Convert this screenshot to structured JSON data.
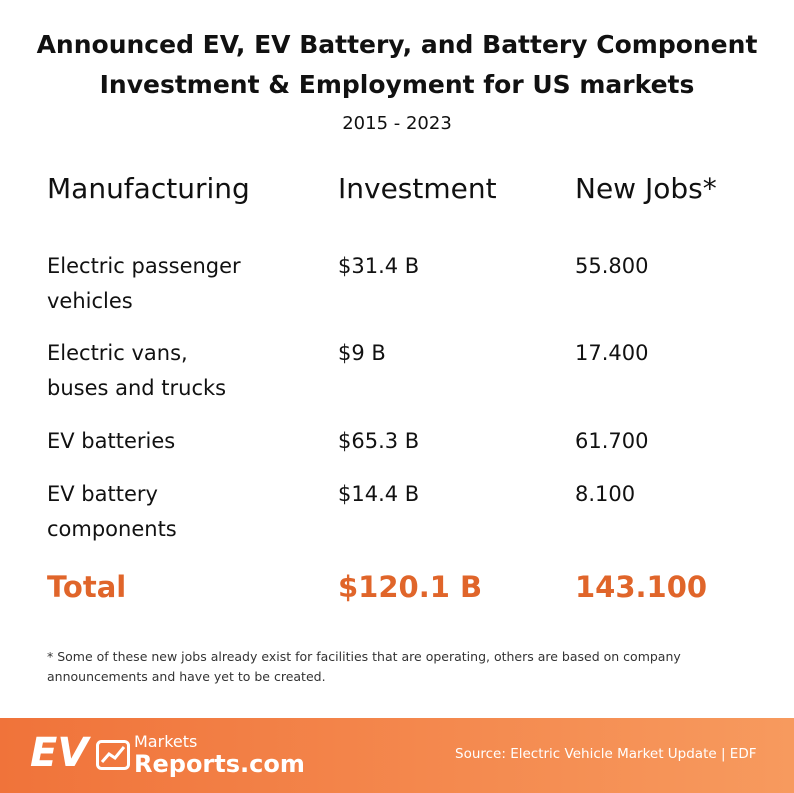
{
  "header": {
    "title_lines": [
      "Announced EV, EV Battery, and Battery Component",
      "Investment & Employment for US markets"
    ],
    "subtitle": "2015 - 2023"
  },
  "table": {
    "columns": [
      "Manufacturing",
      "Investment",
      "New Jobs*"
    ],
    "rows": [
      [
        [
          "Electric passenger",
          "vehicles"
        ],
        "$31.4 B",
        "55.800"
      ],
      [
        [
          "Electric vans,",
          "buses and trucks"
        ],
        "$9 B",
        "17.400"
      ],
      [
        [
          "EV batteries"
        ],
        "$65.3 B",
        "61.700"
      ],
      [
        [
          "EV battery",
          "components"
        ],
        "$14.4 B",
        "8.100"
      ]
    ],
    "total": [
      "Total",
      "$120.1 B",
      "143.100"
    ]
  },
  "footnote_lines": [
    "* Some of these new jobs already exist for facilities that are operating, others are based on company",
    "announcements and have yet to be created."
  ],
  "footer": {
    "logo_ev": "EV",
    "logo_markets": "Markets",
    "logo_reports": "Reports.com",
    "source": "Source: Electric Vehicle Market Update | EDF"
  }
}
